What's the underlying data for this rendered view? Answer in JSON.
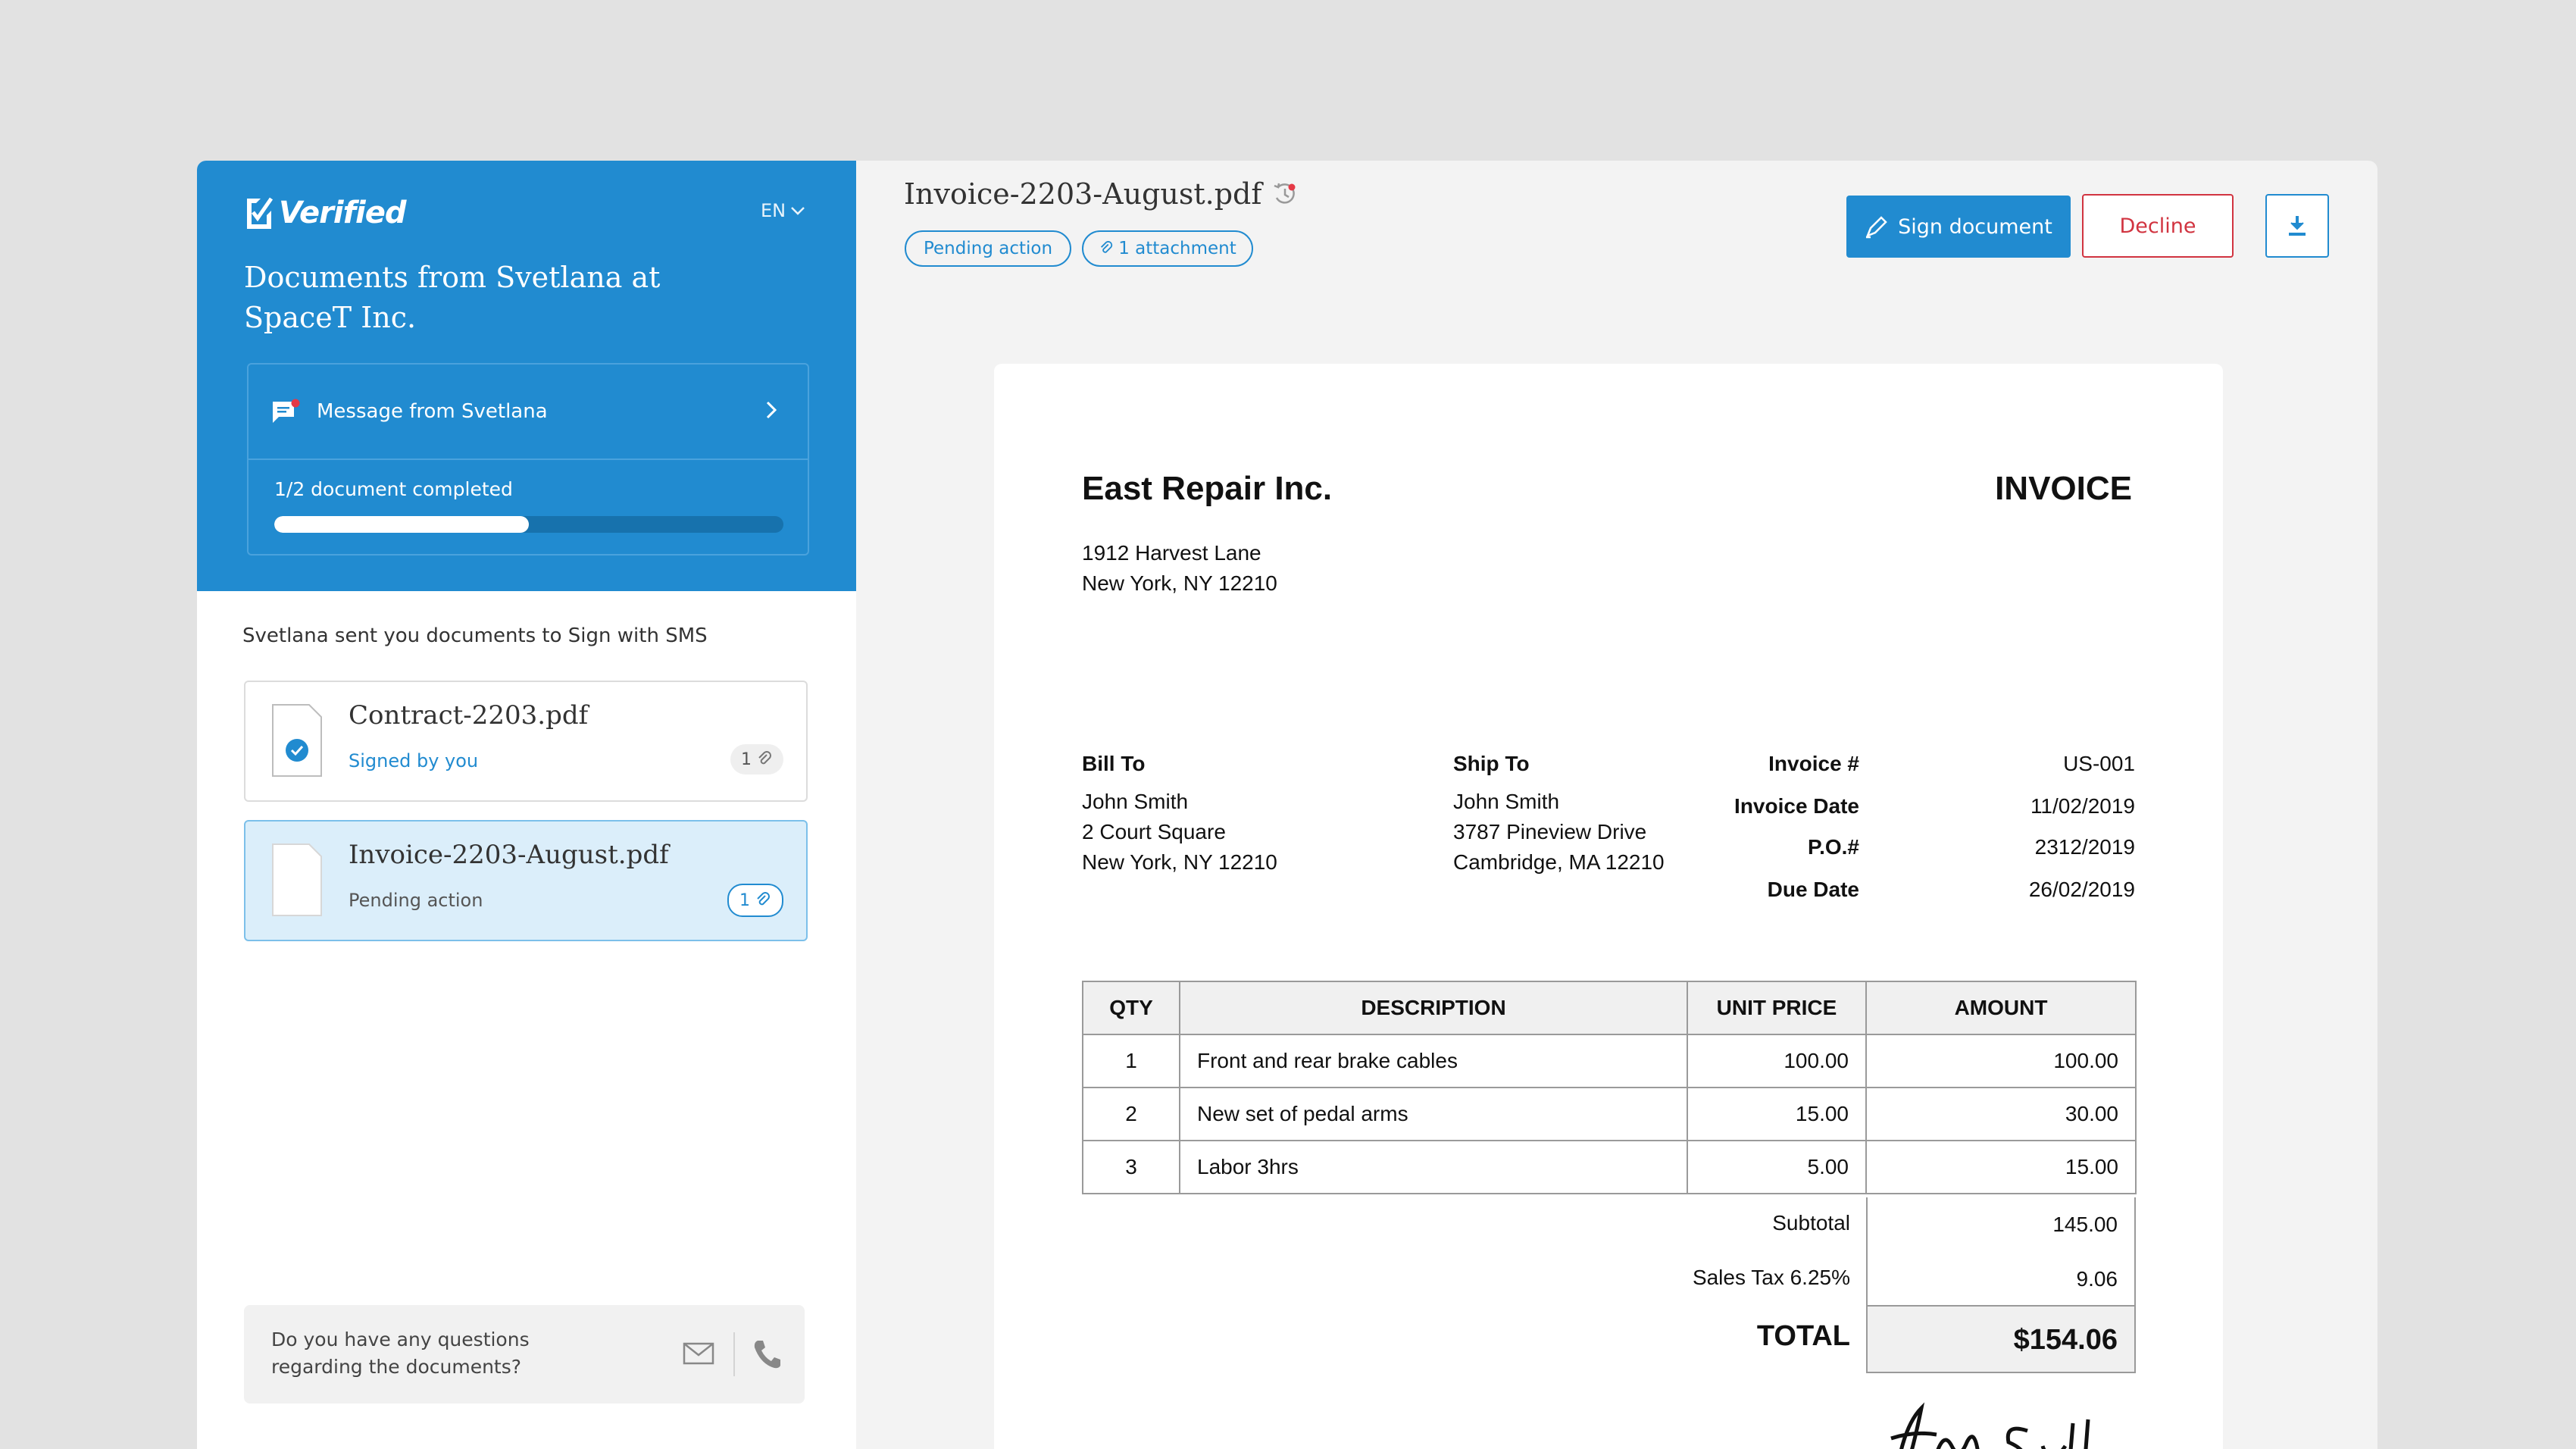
{
  "brand": {
    "logo_text": "Verified",
    "accent": "#218bd0"
  },
  "sidebar": {
    "language": "EN",
    "title": "Documents from Svetlana at SpaceT Inc.",
    "message_label": "Message from Svetlana",
    "progress_label": "1/2 document completed",
    "progress_value": 0.5,
    "sent_text": "Svetlana sent you documents to Sign with SMS",
    "documents": [
      {
        "name": "Contract-2203.pdf",
        "status": "Signed by you",
        "attachments": "1",
        "status_color": "#218bd0"
      },
      {
        "name": "Invoice-2203-August.pdf",
        "status": "Pending action",
        "attachments": "1",
        "status_color": "#555555"
      }
    ],
    "question_text": "Do you have any questions regarding the documents?"
  },
  "header": {
    "doc_title": "Invoice-2203-August.pdf",
    "status_pill": "Pending action",
    "attachment_pill": "1 attachment",
    "sign_label": "Sign document",
    "decline_label": "Decline"
  },
  "invoice": {
    "company": "East Repair Inc.",
    "title": "INVOICE",
    "company_address": [
      "1912 Harvest Lane",
      "New York, NY 12210"
    ],
    "bill_to_label": "Bill To",
    "bill_to": [
      "John Smith",
      "2 Court Square",
      "New York, NY 12210"
    ],
    "ship_to_label": "Ship To",
    "ship_to": [
      "John Smith",
      "3787 Pineview Drive",
      "Cambridge, MA 12210"
    ],
    "meta": [
      {
        "label": "Invoice #",
        "value": "US-001"
      },
      {
        "label": "Invoice Date",
        "value": "11/02/2019"
      },
      {
        "label": "P.O.#",
        "value": "2312/2019"
      },
      {
        "label": "Due Date",
        "value": "26/02/2019"
      }
    ],
    "columns": [
      "QTY",
      "DESCRIPTION",
      "UNIT PRICE",
      "AMOUNT"
    ],
    "rows": [
      {
        "qty": "1",
        "desc": "Front and rear brake cables",
        "unit": "100.00",
        "amount": "100.00"
      },
      {
        "qty": "2",
        "desc": "New set of pedal arms",
        "unit": "15.00",
        "amount": "30.00"
      },
      {
        "qty": "3",
        "desc": "Labor 3hrs",
        "unit": "5.00",
        "amount": "15.00"
      }
    ],
    "subtotal_label": "Subtotal",
    "subtotal": "145.00",
    "tax_label": "Sales Tax 6.25%",
    "tax": "9.06",
    "total_label": "TOTAL",
    "total": "$154.06"
  }
}
